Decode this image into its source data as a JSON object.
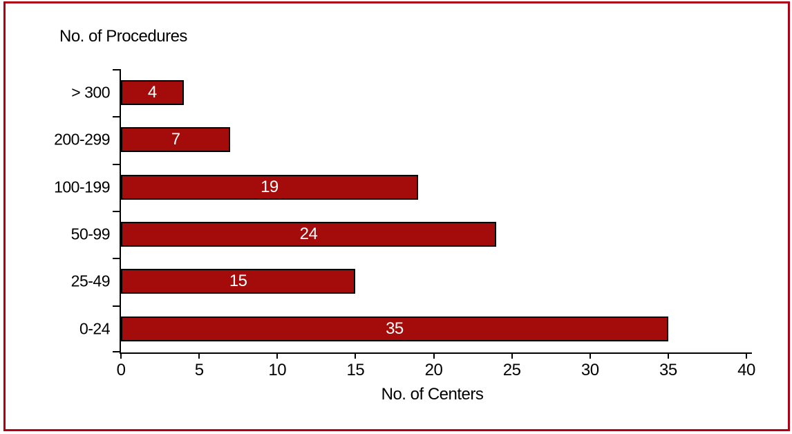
{
  "frame": {
    "border_color": "#b00016"
  },
  "chart_data": {
    "type": "bar",
    "orientation": "horizontal",
    "title": "No. of Procedures",
    "xlabel": "No. of Centers",
    "categories": [
      "> 300",
      "200-299",
      "100-199",
      "50-99",
      "25-49",
      "0-24"
    ],
    "values": [
      4,
      7,
      19,
      24,
      15,
      35
    ],
    "xlim": [
      0,
      40
    ],
    "x_ticks": [
      0,
      5,
      10,
      15,
      20,
      25,
      30,
      35,
      40
    ],
    "grid": false,
    "legend": "none",
    "bar_color": "#a40b0b",
    "bar_border_color": "#000000",
    "value_label_color": "#ffffff",
    "axis_color": "#000000"
  }
}
